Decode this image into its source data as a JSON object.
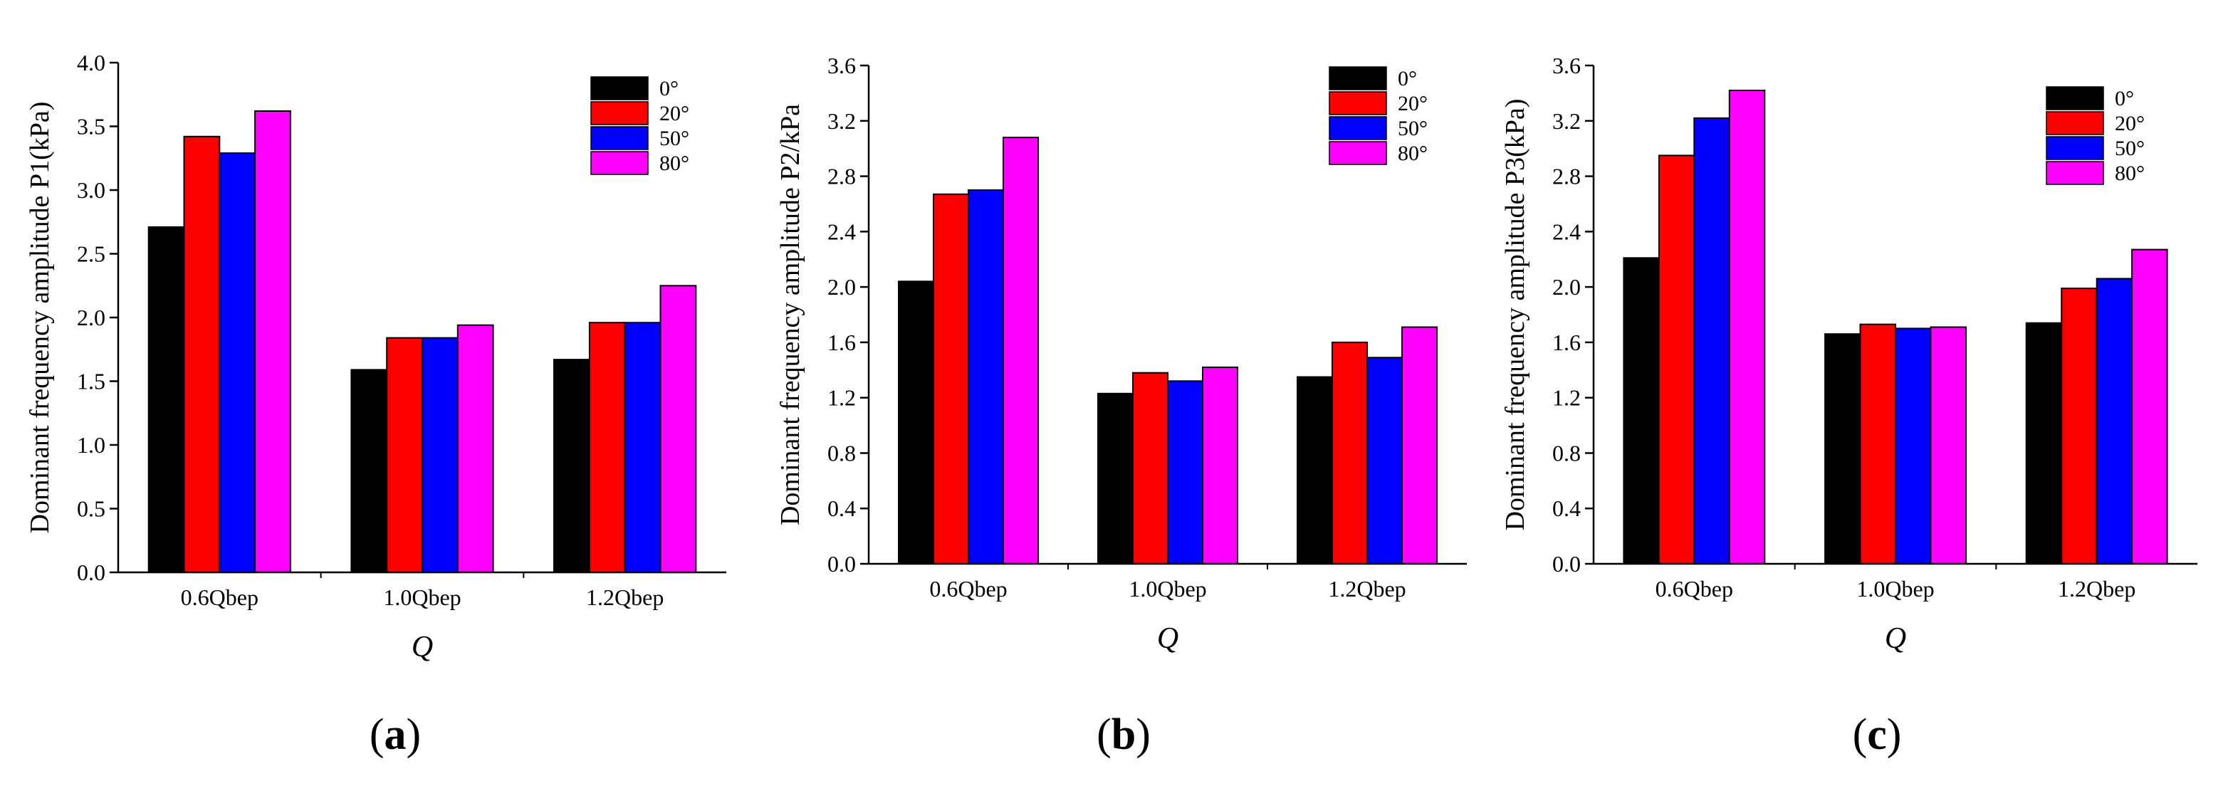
{
  "figure": {
    "colors": {
      "0°": "#000000",
      "20°": "#ff0000",
      "50°": "#0000ff",
      "80°": "#ff00ff"
    }
  },
  "chart_data": [
    {
      "type": "bar",
      "panel_label": "a",
      "title": "",
      "xlabel": "Q",
      "ylabel": "Dominant frequency amplitude P1(kPa)",
      "categories": [
        "0.6Qbep",
        "1.0Qbep",
        "1.2Qbep"
      ],
      "ylim": [
        0,
        4.0
      ],
      "yticks": [
        "0.0",
        "0.5",
        "1.0",
        "1.5",
        "2.0",
        "2.5",
        "3.0",
        "3.5",
        "4.0"
      ],
      "legend_position": "top-right",
      "series": [
        {
          "name": "0°",
          "values": [
            2.71,
            1.59,
            1.67
          ]
        },
        {
          "name": "20°",
          "values": [
            3.42,
            1.84,
            1.96
          ]
        },
        {
          "name": "50°",
          "values": [
            3.29,
            1.84,
            1.96
          ]
        },
        {
          "name": "80°",
          "values": [
            3.62,
            1.94,
            2.25
          ]
        }
      ]
    },
    {
      "type": "bar",
      "panel_label": "b",
      "title": "",
      "xlabel": "Q",
      "ylabel": "Dominant frequency amplitude P2/kPa",
      "categories": [
        "0.6Qbep",
        "1.0Qbep",
        "1.2Qbep"
      ],
      "ylim": [
        0,
        3.6
      ],
      "yticks": [
        "0.0",
        "0.4",
        "0.8",
        "1.2",
        "1.6",
        "2.0",
        "2.4",
        "2.8",
        "3.2",
        "3.6"
      ],
      "legend_position": "top-right",
      "series": [
        {
          "name": "0°",
          "values": [
            2.04,
            1.23,
            1.35
          ]
        },
        {
          "name": "20°",
          "values": [
            2.67,
            1.38,
            1.6
          ]
        },
        {
          "name": "50°",
          "values": [
            2.7,
            1.32,
            1.49
          ]
        },
        {
          "name": "80°",
          "values": [
            3.08,
            1.42,
            1.71
          ]
        }
      ]
    },
    {
      "type": "bar",
      "panel_label": "c",
      "title": "",
      "xlabel": "Q",
      "ylabel": "Dominant frequency amplitude P3(kPa)",
      "categories": [
        "0.6Qbep",
        "1.0Qbep",
        "1.2Qbep"
      ],
      "ylim": [
        0,
        3.6
      ],
      "yticks": [
        "0.0",
        "0.4",
        "0.8",
        "1.2",
        "1.6",
        "2.0",
        "2.4",
        "2.8",
        "3.2",
        "3.6"
      ],
      "legend_position": "top-right",
      "series": [
        {
          "name": "0°",
          "values": [
            2.21,
            1.66,
            1.74
          ]
        },
        {
          "name": "20°",
          "values": [
            2.95,
            1.73,
            1.99
          ]
        },
        {
          "name": "50°",
          "values": [
            3.22,
            1.7,
            2.06
          ]
        },
        {
          "name": "80°",
          "values": [
            3.42,
            1.71,
            2.27
          ]
        }
      ]
    }
  ]
}
